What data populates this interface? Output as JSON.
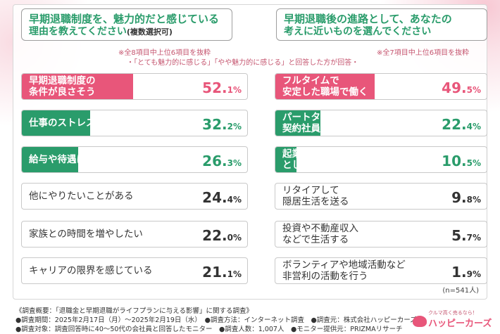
{
  "colors": {
    "pink": "#e8567a",
    "green": "#2a9c6b",
    "gray_bar": "#ffffff"
  },
  "chart_data": [
    {
      "type": "bar",
      "title": "早期退職制度を、魅力的だと感じている",
      "title_line2": "理由を教えてください",
      "title_paren": "(複数選択可)",
      "note": "※全8項目中上位6項目を抜粋",
      "note2": "・「とても魅力的に感じる」「やや魅力的に感じる」と回答した方が回答・",
      "unit": "%",
      "xlim": [
        0,
        100
      ],
      "categories": [
        "早期退職制度の\n条件が良さそう",
        "仕事のストレスが大きい",
        "給与や待遇に不満がある",
        "他にやりたいことがある",
        "家族との時間を増やしたい",
        "キャリアの限界を感じている"
      ],
      "values": [
        52.1,
        32.2,
        26.3,
        24.4,
        22.0,
        21.1
      ],
      "value_labels": [
        [
          "52.",
          "1",
          "%"
        ],
        [
          "32.",
          "2",
          "%"
        ],
        [
          "26.",
          "3",
          "%"
        ],
        [
          "24.",
          "4",
          "%"
        ],
        [
          "22.",
          "0",
          "%"
        ],
        [
          "21.",
          "1",
          "%"
        ]
      ],
      "bar_colors": [
        "pink",
        "green",
        "green",
        "gray",
        "gray",
        "gray"
      ]
    },
    {
      "type": "bar",
      "title": "早期退職後の進路として、あなたの",
      "title_line2": "考えに近いものを選んでください",
      "title_paren": "",
      "note": "※全7項目中上位6項目を抜粋",
      "note2": "",
      "unit": "%",
      "xlim": [
        0,
        100
      ],
      "categories": [
        "フルタイムで\n安定した職場で働く",
        "パートタイムや\n契約社員など柔軟に働く",
        "起業やフリーランス\nとして働く",
        "リタイアして\n隠居生活を送る",
        "投資や不動産収入\nなどで生活する",
        "ボランティアや地域活動など\n非営利の活動を行う"
      ],
      "values": [
        49.5,
        22.4,
        10.5,
        9.8,
        5.7,
        1.9
      ],
      "value_labels": [
        [
          "49.",
          "5",
          "%"
        ],
        [
          "22.",
          "4",
          "%"
        ],
        [
          "10.",
          "5",
          "%"
        ],
        [
          "9.",
          "8",
          "%"
        ],
        [
          "5.",
          "7",
          "%"
        ],
        [
          "1.",
          "9",
          "%"
        ]
      ],
      "bar_colors": [
        "pink",
        "green",
        "green",
        "gray",
        "gray",
        "gray"
      ]
    }
  ],
  "sample_size": "(n=541人)",
  "footer": {
    "line1": "《調査概要：「退職金と早期退職がライフプランに与える影響」に関する調査》",
    "line2": "●調査期間：2025年2月17日（月）～2025年2月19日（水）　●調査方法：インターネット調査　●調査元：株式会社ハッピーカーズ",
    "line3": "●調査対象：調査回答時に40～50代の会社員と回答したモニター　●調査人数：1,007人　●モニター提供元：PRIZMAリサーチ"
  },
  "logo": {
    "tagline": "クルマ高く売るなら！",
    "name": "ハッピーカーズ"
  }
}
